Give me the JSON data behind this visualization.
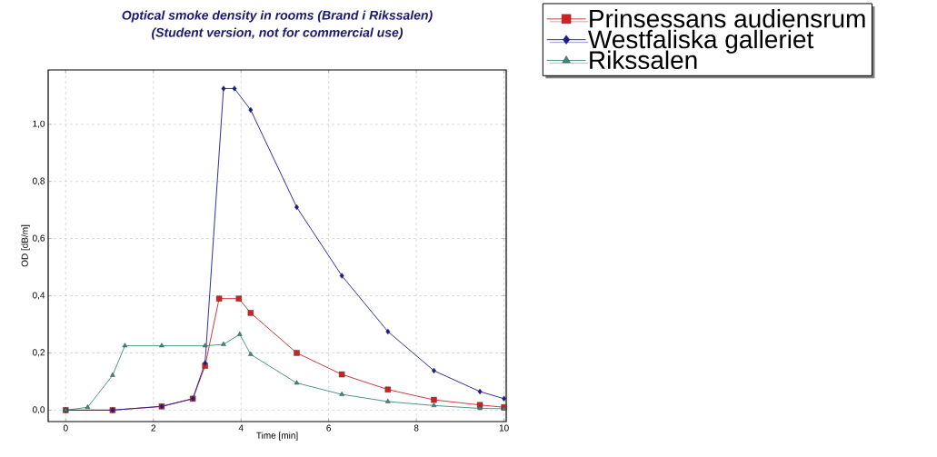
{
  "chart_data": {
    "type": "line",
    "title": "Optical smoke density in rooms   (Brand i Rikssalen)",
    "subtitle": "(Student version, not for commercial use)",
    "xlabel": "Time [min]",
    "ylabel": "OD [dB/m]",
    "xlim": [
      -0.4,
      10.05
    ],
    "ylim": [
      -0.04,
      1.19
    ],
    "xticks": [
      0,
      2,
      4,
      6,
      8,
      10
    ],
    "yticks": [
      {
        "value": 0,
        "label": "0,0"
      },
      {
        "value": 0.2,
        "label": "0,2"
      },
      {
        "value": 0.4,
        "label": "0,4"
      },
      {
        "value": 0.6,
        "label": "0,6"
      },
      {
        "value": 0.8,
        "label": "0,8"
      },
      {
        "value": 1.0,
        "label": "1,0"
      }
    ],
    "grid": true,
    "legend": "top right",
    "series": [
      {
        "name": "Prinsessans audiensrum",
        "color": "#cc2222",
        "marker": "square",
        "x": [
          0,
          1.07,
          2.19,
          2.9,
          3.18,
          3.5,
          3.95,
          4.22,
          5.27,
          6.3,
          7.35,
          8.4,
          9.45,
          10
        ],
        "values": [
          0,
          0,
          0.013,
          0.04,
          0.155,
          0.39,
          0.39,
          0.34,
          0.2,
          0.125,
          0.072,
          0.036,
          0.018,
          0.01
        ]
      },
      {
        "name": "Westfaliska galleriet",
        "color": "#1a1a9a",
        "marker": "diamond",
        "x": [
          0,
          1.07,
          2.19,
          2.9,
          3.18,
          3.6,
          3.85,
          4.22,
          5.27,
          6.3,
          7.35,
          8.4,
          9.45,
          10
        ],
        "values": [
          0,
          0,
          0.013,
          0.04,
          0.165,
          1.125,
          1.125,
          1.05,
          0.71,
          0.47,
          0.275,
          0.138,
          0.065,
          0.04
        ]
      },
      {
        "name": "Rikssalen",
        "color": "#3a8a80",
        "marker": "triangle",
        "x": [
          0,
          0.5,
          1.07,
          1.35,
          2.19,
          3.18,
          3.6,
          3.97,
          4.22,
          5.27,
          6.3,
          7.35,
          8.4,
          9.45,
          10
        ],
        "values": [
          0,
          0.01,
          0.122,
          0.225,
          0.225,
          0.225,
          0.23,
          0.265,
          0.195,
          0.095,
          0.055,
          0.03,
          0.016,
          0.006,
          0.005
        ]
      }
    ]
  }
}
